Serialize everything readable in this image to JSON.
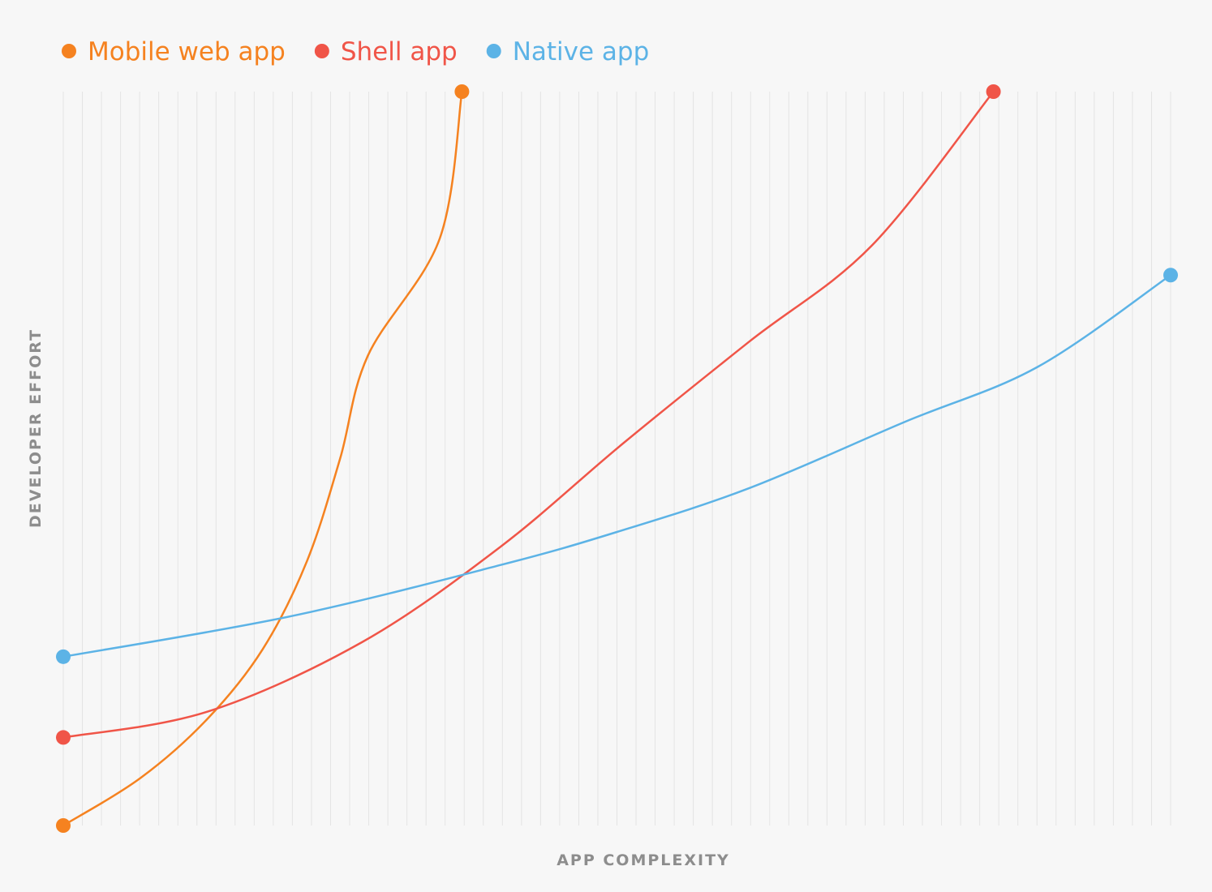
{
  "chart_data": {
    "type": "line",
    "title": "",
    "xlabel": "APP COMPLEXITY",
    "ylabel": "DEVELOPER EFFORT",
    "xlim": [
      0,
      100
    ],
    "ylim": [
      0,
      100
    ],
    "grid": "vertical",
    "legend_position": "top-left",
    "series": [
      {
        "name": "Mobile web app",
        "color": "#f58220",
        "points": [
          [
            0,
            0
          ],
          [
            7,
            6.5
          ],
          [
            13,
            14.5
          ],
          [
            18,
            24
          ],
          [
            22,
            36
          ],
          [
            25,
            50
          ],
          [
            27.5,
            64
          ],
          [
            34,
            80
          ],
          [
            36,
            100
          ]
        ]
      },
      {
        "name": "Shell app",
        "color": "#f05548",
        "points": [
          [
            0,
            12
          ],
          [
            13,
            15.5
          ],
          [
            27,
            25
          ],
          [
            39.5,
            38
          ],
          [
            50.5,
            52
          ],
          [
            62,
            66
          ],
          [
            73,
            79
          ],
          [
            84,
            100
          ]
        ]
      },
      {
        "name": "Native app",
        "color": "#5cb3e6",
        "points": [
          [
            0,
            23
          ],
          [
            20.5,
            28.5
          ],
          [
            39.5,
            35.5
          ],
          [
            50,
            40
          ],
          [
            62,
            46
          ],
          [
            76,
            55
          ],
          [
            88,
            62.5
          ],
          [
            100,
            75
          ]
        ]
      }
    ]
  }
}
